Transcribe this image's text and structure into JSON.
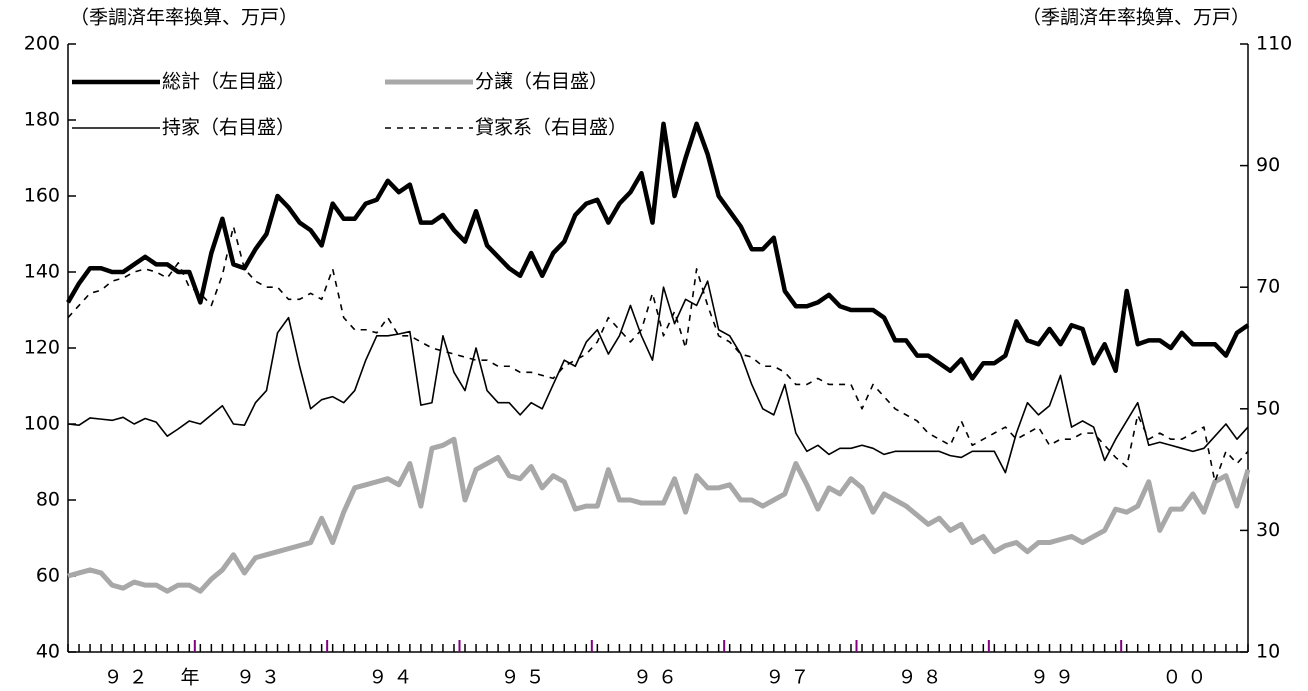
{
  "chart_data": {
    "type": "line",
    "y_label": "（季調済年率換算、万戸）",
    "y2_label": "（季調済年率換算、万戸）",
    "x_unit": "年",
    "categories": [
      null,
      null,
      null,
      null,
      null,
      "９２",
      null,
      null,
      null,
      null,
      null,
      null,
      null,
      null,
      null,
      null,
      null,
      "９３",
      null,
      null,
      null,
      null,
      null,
      null,
      null,
      null,
      null,
      null,
      null,
      "９４",
      null,
      null,
      null,
      null,
      null,
      null,
      null,
      null,
      null,
      null,
      null,
      "９５",
      null,
      null,
      null,
      null,
      null,
      null,
      null,
      null,
      null,
      null,
      null,
      "９６",
      null,
      null,
      null,
      null,
      null,
      null,
      null,
      null,
      null,
      null,
      null,
      "９７",
      null,
      null,
      null,
      null,
      null,
      null,
      null,
      null,
      null,
      null,
      null,
      "９８",
      null,
      null,
      null,
      null,
      null,
      null,
      null,
      null,
      null,
      null,
      null,
      "９９",
      null,
      null,
      null,
      null,
      null,
      null,
      null,
      null,
      null,
      null,
      null,
      "００",
      null,
      null,
      null,
      null,
      null,
      null
    ],
    "ylim": [
      40,
      200
    ],
    "yticks": [
      40,
      60,
      80,
      100,
      120,
      140,
      160,
      180,
      200
    ],
    "y2lim": [
      10,
      110
    ],
    "y2ticks": [
      10,
      30,
      50,
      70,
      90,
      110
    ],
    "series": [
      {
        "name": "総計（左目盛）",
        "color": "#000000",
        "width": 4.5,
        "dash": false,
        "values": [
          132,
          137,
          141,
          141,
          140,
          140,
          142,
          144,
          142,
          142,
          140,
          140,
          132,
          145,
          154,
          142,
          141,
          146,
          150,
          160,
          157,
          153,
          151,
          147,
          158,
          154,
          154,
          158,
          159,
          164,
          161,
          163,
          153,
          153,
          155,
          151,
          148,
          156,
          147,
          144,
          141,
          139,
          145,
          139,
          145,
          148,
          155,
          158,
          159,
          153,
          158,
          161,
          166,
          153,
          179,
          160,
          170,
          179,
          171,
          160,
          156,
          152,
          146,
          146,
          149,
          135,
          131,
          131,
          132,
          134,
          131,
          130,
          130,
          130,
          128,
          122,
          122,
          118,
          118,
          116,
          114,
          117,
          112,
          116,
          116,
          118,
          127,
          122,
          121,
          125,
          121,
          126,
          125,
          116,
          121,
          114,
          135,
          121,
          122,
          122,
          120,
          124,
          121,
          121,
          121,
          118,
          124,
          126
        ]
      },
      {
        "name": "分譲（右目盛）",
        "color": "#a8a8a8",
        "width": 5,
        "dash": false,
        "axis": "y2",
        "values": [
          22.5,
          23,
          23.5,
          23,
          21,
          20.5,
          21.5,
          21,
          21,
          20,
          21,
          21,
          20,
          22,
          23.5,
          26,
          23,
          25.5,
          26,
          26.5,
          27,
          27.5,
          28,
          32,
          28,
          33,
          37,
          37.5,
          38,
          38.5,
          37.5,
          41,
          34,
          43.5,
          44,
          45,
          35,
          40,
          41,
          42,
          39,
          38.5,
          40.5,
          37,
          39,
          38,
          33.5,
          34,
          34,
          40,
          35,
          35,
          34.5,
          34.5,
          34.5,
          38.5,
          33,
          39,
          37,
          37,
          37.5,
          35,
          35,
          34,
          35,
          36,
          41,
          37.5,
          33.5,
          37,
          36,
          38.5,
          37,
          33,
          36,
          35,
          34,
          32.5,
          31,
          32,
          30,
          31,
          28,
          29,
          26.5,
          27.5,
          28,
          26.5,
          28,
          28,
          28.5,
          29,
          28,
          29,
          30,
          33.5,
          33,
          34,
          38,
          30,
          33.5,
          33.5,
          36,
          33,
          38,
          39,
          34,
          40
        ]
      },
      {
        "name": "持家（右目盛）",
        "color": "#000000",
        "width": 1.6,
        "dash": false,
        "axis": "y2",
        "values": [
          47.5,
          47.3,
          48.5,
          48.3,
          48.1,
          48.6,
          47.5,
          48.4,
          47.8,
          45.5,
          46.7,
          48,
          47.5,
          49,
          50.5,
          47.5,
          47.3,
          51,
          53,
          62.5,
          65,
          57,
          50,
          51.5,
          52,
          51,
          53,
          58,
          62,
          62,
          62.3,
          62.7,
          50.6,
          51,
          62,
          56,
          53,
          60,
          53,
          51,
          51,
          49,
          51,
          50,
          54,
          58,
          57,
          61,
          63,
          59,
          62,
          67,
          62,
          58,
          70,
          64,
          68,
          67,
          71,
          63,
          62,
          59,
          54,
          50,
          49,
          54,
          46,
          43,
          44,
          42.5,
          43.5,
          43.5,
          44,
          43.5,
          42.5,
          43,
          43,
          43,
          43,
          43,
          42.3,
          42,
          43,
          43,
          43,
          39.5,
          46,
          51,
          49,
          50.5,
          55.5,
          47,
          48,
          47,
          41.5,
          45,
          48,
          51,
          44,
          44.5,
          44,
          43.5,
          43,
          43.5,
          45.5,
          47.5,
          45,
          47
        ]
      },
      {
        "name": "貸家系（右目盛）",
        "color": "#000000",
        "width": 1.6,
        "dash": true,
        "axis": "y2",
        "values": [
          65,
          67,
          69,
          69.5,
          71,
          71.5,
          72.5,
          73,
          72.5,
          71.5,
          74,
          70,
          69,
          67,
          72,
          80,
          73,
          71,
          70,
          70,
          68,
          68,
          69,
          68,
          73,
          65,
          63,
          63,
          62.5,
          65,
          62,
          62,
          61,
          60,
          59.5,
          59,
          58.5,
          58,
          58,
          57,
          57,
          56,
          56,
          55.5,
          55,
          57,
          58,
          59,
          61,
          65,
          63,
          61,
          63,
          69,
          62,
          66,
          60,
          73,
          67,
          62,
          61,
          59,
          58.5,
          57,
          57,
          56,
          54,
          54,
          55,
          54,
          54,
          54,
          50,
          54,
          52,
          50,
          49,
          48,
          46,
          45,
          44,
          48,
          44,
          45,
          46,
          47,
          45,
          46,
          47,
          44,
          45,
          45,
          46,
          46,
          44,
          42,
          40.5,
          49,
          45,
          46,
          45,
          45,
          46,
          47,
          38,
          43,
          41,
          43
        ]
      }
    ]
  }
}
